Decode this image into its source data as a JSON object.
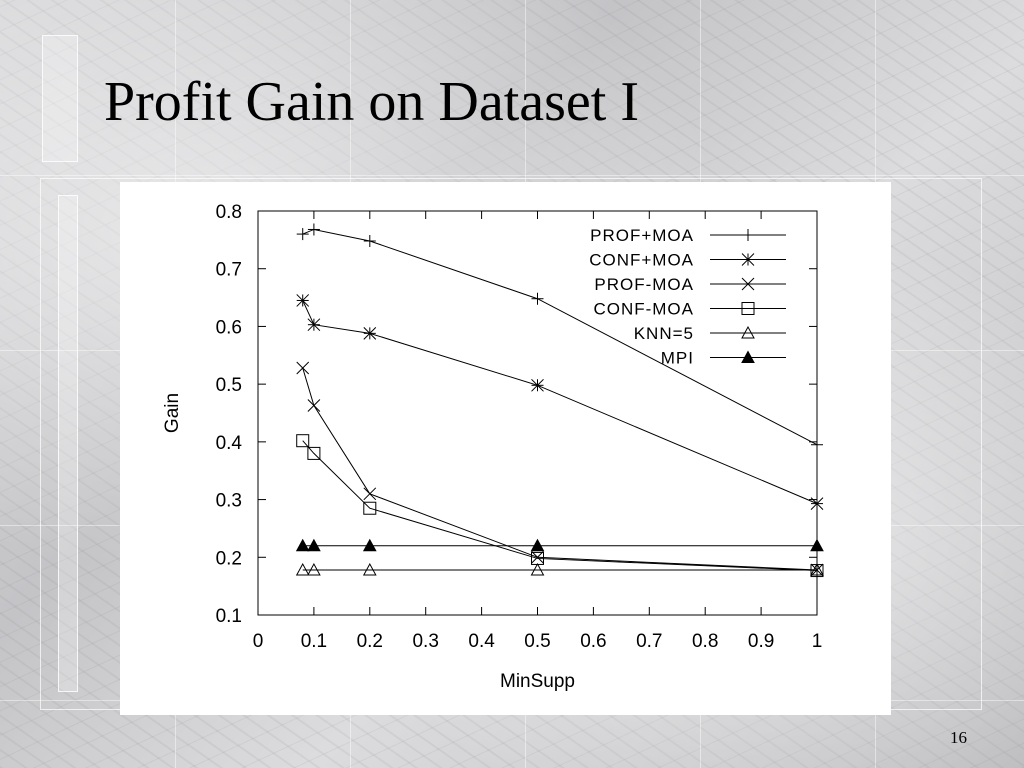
{
  "slide": {
    "title": "Profit Gain on Dataset I",
    "page_number": "16"
  },
  "chart_data": {
    "type": "line",
    "xlabel": "MinSupp",
    "ylabel": "Gain",
    "xlim": [
      0,
      1
    ],
    "ylim": [
      0.1,
      0.8
    ],
    "xticks": [
      "0",
      "0.1",
      "0.2",
      "0.3",
      "0.4",
      "0.5",
      "0.6",
      "0.7",
      "0.8",
      "0.9",
      "1"
    ],
    "yticks": [
      "0.1",
      "0.2",
      "0.3",
      "0.4",
      "0.5",
      "0.6",
      "0.7",
      "0.8"
    ],
    "grid": false,
    "legend_position": "top-right",
    "x": [
      0.08,
      0.1,
      0.2,
      0.5,
      1.0
    ],
    "series": [
      {
        "name": "PROF+MOA",
        "marker": "plus",
        "values": [
          0.76,
          0.768,
          0.748,
          0.648,
          0.395
        ]
      },
      {
        "name": "CONF+MOA",
        "marker": "star",
        "values": [
          0.645,
          0.603,
          0.588,
          0.498,
          0.293
        ]
      },
      {
        "name": "PROF-MOA",
        "marker": "cross",
        "values": [
          0.528,
          0.463,
          0.31,
          0.2,
          0.178
        ]
      },
      {
        "name": "CONF-MOA",
        "marker": "square",
        "values": [
          0.402,
          0.38,
          0.285,
          0.198,
          0.177
        ]
      },
      {
        "name": "KNN=5",
        "marker": "triangle",
        "values": [
          0.178,
          0.178,
          0.178,
          0.178,
          0.178
        ]
      },
      {
        "name": "MPI",
        "marker": "triangle-filled",
        "values": [
          0.22,
          0.22,
          0.22,
          0.22,
          0.22
        ]
      }
    ]
  }
}
